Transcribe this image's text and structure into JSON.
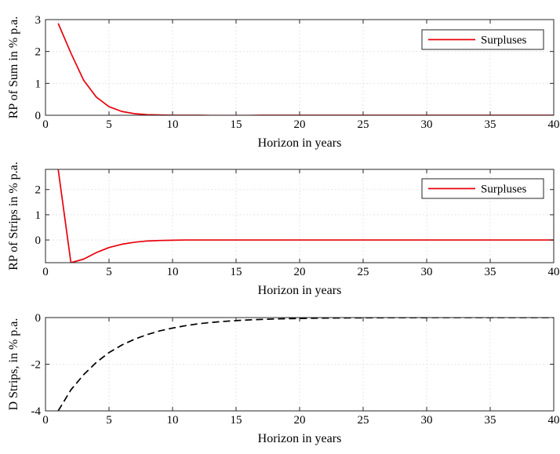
{
  "chart_data": [
    {
      "type": "line",
      "xlabel": "Horizon in years",
      "ylabel": "RP of Sum  in % p.a.",
      "xlim": [
        0,
        40
      ],
      "ylim": [
        0,
        3
      ],
      "xticks": [
        0,
        5,
        10,
        15,
        20,
        25,
        30,
        35,
        40
      ],
      "yticks": [
        0,
        1,
        2,
        3
      ],
      "grid": true,
      "legend": {
        "position": "top-right",
        "entries": [
          "Surpluses"
        ]
      },
      "series": [
        {
          "name": "Surpluses",
          "color": "#e8000b",
          "dash": "solid",
          "x": [
            1,
            2,
            3,
            4,
            5,
            6,
            7,
            8,
            9,
            10,
            11,
            12,
            13,
            14,
            15,
            16,
            17,
            18,
            19,
            20,
            21,
            22,
            23,
            24,
            25,
            26,
            27,
            28,
            29,
            30,
            31,
            32,
            33,
            34,
            35,
            36,
            37,
            38,
            39,
            40
          ],
          "y": [
            2.88,
            1.95,
            1.1,
            0.57,
            0.27,
            0.12,
            0.05,
            0.02,
            0.01,
            0.0,
            0.0,
            0.0,
            -0.005,
            -0.005,
            -0.005,
            -0.005,
            0.0,
            0.0,
            0.0,
            0.0,
            0.0,
            0.0,
            0.0,
            0.0,
            0.0,
            0.0,
            0.0,
            0.0,
            0.0,
            0.0,
            0.0,
            0.0,
            0.0,
            0.0,
            0.0,
            0.0,
            0.0,
            0.0,
            0.0,
            0.0
          ]
        }
      ]
    },
    {
      "type": "line",
      "xlabel": "Horizon in years",
      "ylabel": "RP of Strips in % p.a.",
      "xlim": [
        0,
        40
      ],
      "ylim": [
        -0.9,
        2.8
      ],
      "xticks": [
        0,
        5,
        10,
        15,
        20,
        25,
        30,
        35,
        40
      ],
      "yticks": [
        0,
        1,
        2
      ],
      "grid": true,
      "legend": {
        "position": "top-right",
        "entries": [
          "Surpluses"
        ]
      },
      "series": [
        {
          "name": "Surpluses",
          "color": "#e8000b",
          "dash": "solid",
          "x": [
            1,
            2,
            3,
            4,
            5,
            6,
            7,
            8,
            9,
            10,
            11,
            12,
            13,
            14,
            15,
            16,
            17,
            18,
            19,
            20,
            21,
            22,
            23,
            24,
            25,
            26,
            27,
            28,
            29,
            30,
            31,
            32,
            33,
            34,
            35,
            36,
            37,
            38,
            39,
            40
          ],
          "y": [
            2.8,
            -0.9,
            -0.76,
            -0.5,
            -0.3,
            -0.17,
            -0.09,
            -0.04,
            -0.02,
            -0.01,
            0.0,
            0.0,
            0.0,
            0.0,
            0.0,
            0.0,
            0.0,
            0.0,
            0.0,
            0.0,
            0.0,
            0.0,
            0.0,
            0.0,
            0.0,
            0.0,
            0.0,
            0.0,
            0.0,
            0.0,
            0.0,
            0.0,
            0.0,
            0.0,
            0.0,
            0.0,
            0.0,
            0.0,
            0.0,
            0.0
          ]
        }
      ]
    },
    {
      "type": "line",
      "xlabel": "Horizon in years",
      "ylabel": "D Strips, in % p.a.",
      "xlim": [
        0,
        40
      ],
      "ylim": [
        -4,
        0
      ],
      "xticks": [
        0,
        5,
        10,
        15,
        20,
        25,
        30,
        35,
        40
      ],
      "yticks": [
        -4,
        -2,
        0
      ],
      "grid": true,
      "series": [
        {
          "color": "#000000",
          "dash": "dashed",
          "x": [
            1,
            2,
            3,
            4,
            5,
            6,
            7,
            8,
            9,
            10,
            11,
            12,
            13,
            14,
            15,
            16,
            17,
            18,
            19,
            20,
            21,
            22,
            23,
            24,
            25,
            26,
            27,
            28,
            29,
            30,
            31,
            32,
            33,
            34,
            35,
            36,
            37,
            38,
            39,
            40
          ],
          "y": [
            -4.0,
            -3.1,
            -2.45,
            -1.92,
            -1.5,
            -1.18,
            -0.93,
            -0.73,
            -0.57,
            -0.45,
            -0.35,
            -0.27,
            -0.21,
            -0.165,
            -0.13,
            -0.1,
            -0.08,
            -0.06,
            -0.048,
            -0.038,
            -0.03,
            -0.023,
            -0.018,
            -0.014,
            -0.011,
            -0.009,
            -0.007,
            -0.005,
            -0.004,
            -0.003,
            -0.002,
            -0.002,
            -0.001,
            -0.001,
            -0.001,
            0.0,
            0.0,
            0.0,
            0.0,
            0.0
          ]
        }
      ]
    }
  ]
}
